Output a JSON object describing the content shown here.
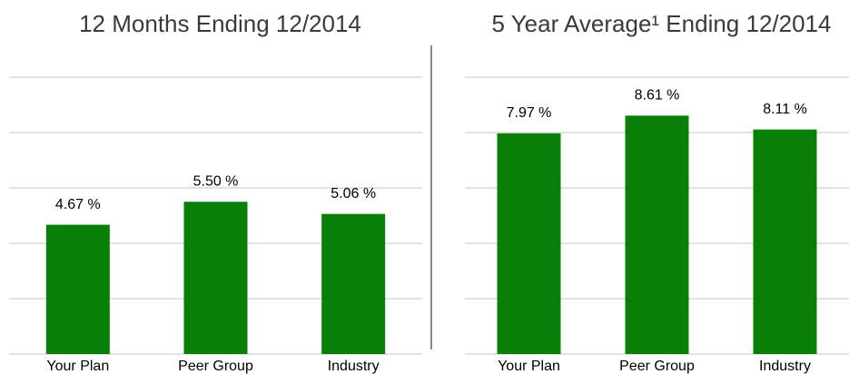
{
  "chart_data": [
    {
      "type": "bar",
      "title": "12 Months Ending 12/2014",
      "categories": [
        "Your Plan",
        "Peer Group",
        "Industry"
      ],
      "values": [
        4.67,
        5.5,
        5.06
      ],
      "value_labels": [
        "4.67 %",
        "5.50 %",
        "5.06 %"
      ],
      "color": "#088008",
      "ylim": [
        0,
        10
      ],
      "yticks": [
        0,
        2,
        4,
        6,
        8,
        10
      ],
      "grid": true
    },
    {
      "type": "bar",
      "title": "5 Year Average¹ Ending 12/2014",
      "categories": [
        "Your Plan",
        "Peer Group",
        "Industry"
      ],
      "values": [
        7.97,
        8.61,
        8.11
      ],
      "value_labels": [
        "7.97 %",
        "8.61 %",
        "8.11 %"
      ],
      "color": "#088008",
      "ylim": [
        0,
        10
      ],
      "yticks": [
        0,
        2,
        4,
        6,
        8,
        10
      ],
      "grid": true
    }
  ]
}
